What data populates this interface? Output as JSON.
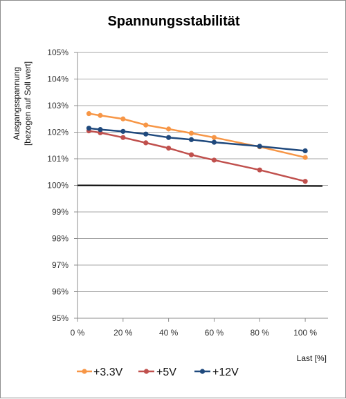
{
  "chart_data": {
    "type": "line",
    "title": "Spannungsstabilität",
    "xlabel": "Last [%]",
    "ylabel": [
      "Ausgangsspannung",
      "[bezogen auf Soll wert]"
    ],
    "xlim": [
      0,
      110
    ],
    "ylim": [
      95,
      105
    ],
    "x_ticks": [
      0,
      20,
      40,
      60,
      80,
      100
    ],
    "x_tick_labels": [
      "0 %",
      "20 %",
      "40 %",
      "60 %",
      "80 %",
      "100 %"
    ],
    "y_ticks": [
      95,
      96,
      97,
      98,
      99,
      100,
      101,
      102,
      103,
      104,
      105
    ],
    "y_tick_labels": [
      "95%",
      "96%",
      "97%",
      "98%",
      "99%",
      "100%",
      "101%",
      "102%",
      "103%",
      "104%",
      "105%"
    ],
    "reference_line": {
      "y": 100,
      "color": "#000000"
    },
    "grid": "horizontal",
    "legend_position": "bottom",
    "series": [
      {
        "name": "+3.3V",
        "color": "#f79646",
        "x": [
          5,
          10,
          20,
          30,
          40,
          50,
          60,
          80,
          100
        ],
        "values": [
          102.7,
          102.63,
          102.5,
          102.27,
          102.12,
          101.96,
          101.8,
          101.45,
          101.05
        ]
      },
      {
        "name": "+5V",
        "color": "#c0504d",
        "x": [
          5,
          10,
          20,
          30,
          40,
          50,
          60,
          80,
          100
        ],
        "values": [
          102.05,
          101.98,
          101.8,
          101.6,
          101.4,
          101.15,
          100.95,
          100.58,
          100.15
        ]
      },
      {
        "name": "+12V",
        "color": "#1f497d",
        "x": [
          5,
          10,
          20,
          30,
          40,
          50,
          60,
          80,
          100
        ],
        "values": [
          102.15,
          102.1,
          102.03,
          101.93,
          101.8,
          101.72,
          101.62,
          101.47,
          101.3
        ]
      }
    ]
  }
}
